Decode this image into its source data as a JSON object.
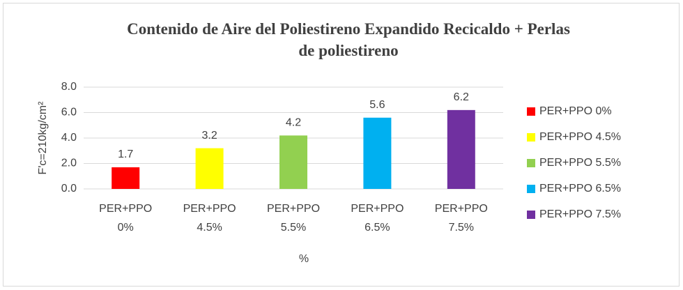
{
  "chart_data": {
    "type": "bar",
    "title": "Contenido de Aire del Poliestireno Expandido Recicaldo + Perlas de poliestireno",
    "y_label": "F'c=210kg/cm²",
    "x_label": "%",
    "categories": [
      "PER+PPO 0%",
      "PER+PPO 4.5%",
      "PER+PPO 5.5%",
      "PER+PPO 6.5%",
      "PER+PPO 7.5%"
    ],
    "series": [
      {
        "name": "PER+PPO 0%",
        "color": "#ff0000",
        "values": [
          1.7,
          null,
          null,
          null,
          null
        ]
      },
      {
        "name": "PER+PPO 4.5%",
        "color": "#ffff00",
        "values": [
          null,
          3.2,
          null,
          null,
          null
        ]
      },
      {
        "name": "PER+PPO 5.5%",
        "color": "#92d050",
        "values": [
          null,
          null,
          4.2,
          null,
          null
        ]
      },
      {
        "name": "PER+PPO 6.5%",
        "color": "#00b0f0",
        "values": [
          null,
          null,
          null,
          5.6,
          null
        ]
      },
      {
        "name": "PER+PPO 7.5%",
        "color": "#7030a0",
        "values": [
          null,
          null,
          null,
          null,
          6.2
        ]
      }
    ],
    "ylim": [
      0,
      8
    ],
    "yticks": [
      {
        "value": 0,
        "label": "0.0"
      },
      {
        "value": 2,
        "label": "2.0"
      },
      {
        "value": 4,
        "label": "4.0"
      },
      {
        "value": 6,
        "label": "6.0"
      },
      {
        "value": 8,
        "label": "8.0"
      }
    ],
    "grid": true,
    "legend": "right"
  }
}
